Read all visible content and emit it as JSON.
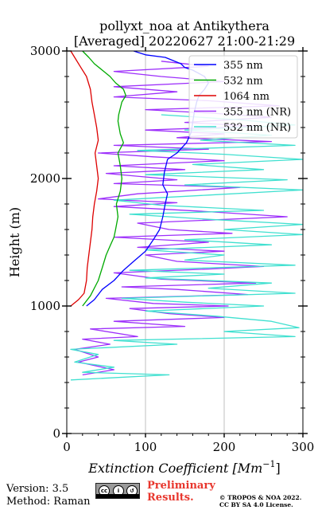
{
  "chart_data": {
    "type": "line",
    "title": "pollyxt_noa at Antikythera",
    "subtitle": "[Averaged] 20220627 21:00-21:29",
    "xlabel": "Extinction Coefficient [Mm",
    "xlabel_sup": "−1",
    "xlabel_end": "]",
    "ylabel": "Height (m)",
    "xlim": [
      0,
      300
    ],
    "ylim": [
      0,
      3000
    ],
    "x_ticks": [
      0,
      100,
      200,
      300
    ],
    "y_ticks": [
      0,
      1000,
      2000,
      3000
    ],
    "grid": true,
    "legend_position": "top-right",
    "series": [
      {
        "name": "355 nm",
        "color": "#0000ff",
        "points": [
          [
            25,
            1000
          ],
          [
            35,
            1050
          ],
          [
            45,
            1130
          ],
          [
            60,
            1200
          ],
          [
            72,
            1280
          ],
          [
            85,
            1350
          ],
          [
            100,
            1430
          ],
          [
            110,
            1520
          ],
          [
            118,
            1600
          ],
          [
            122,
            1700
          ],
          [
            125,
            1800
          ],
          [
            128,
            1880
          ],
          [
            122,
            1950
          ],
          [
            124,
            2050
          ],
          [
            128,
            2150
          ],
          [
            140,
            2200
          ],
          [
            152,
            2280
          ],
          [
            158,
            2360
          ],
          [
            160,
            2440
          ],
          [
            162,
            2520
          ],
          [
            165,
            2600
          ],
          [
            168,
            2650
          ],
          [
            175,
            2700
          ],
          [
            180,
            2750
          ],
          [
            175,
            2800
          ],
          [
            160,
            2850
          ],
          [
            150,
            2870
          ],
          [
            145,
            2900
          ],
          [
            125,
            2950
          ],
          [
            100,
            2970
          ],
          [
            85,
            3000
          ]
        ]
      },
      {
        "name": "532 nm",
        "color": "#00aa00",
        "points": [
          [
            20,
            1000
          ],
          [
            30,
            1080
          ],
          [
            40,
            1200
          ],
          [
            45,
            1300
          ],
          [
            50,
            1400
          ],
          [
            55,
            1470
          ],
          [
            60,
            1540
          ],
          [
            62,
            1600
          ],
          [
            65,
            1700
          ],
          [
            63,
            1800
          ],
          [
            68,
            1900
          ],
          [
            70,
            2000
          ],
          [
            68,
            2100
          ],
          [
            65,
            2200
          ],
          [
            72,
            2280
          ],
          [
            68,
            2350
          ],
          [
            65,
            2450
          ],
          [
            66,
            2500
          ],
          [
            70,
            2600
          ],
          [
            75,
            2650
          ],
          [
            72,
            2700
          ],
          [
            62,
            2750
          ],
          [
            55,
            2800
          ],
          [
            45,
            2850
          ],
          [
            35,
            2900
          ],
          [
            28,
            2950
          ],
          [
            20,
            3000
          ]
        ]
      },
      {
        "name": "1064 nm",
        "color": "#dd0000",
        "points": [
          [
            5,
            1000
          ],
          [
            15,
            1050
          ],
          [
            22,
            1100
          ],
          [
            25,
            1200
          ],
          [
            26,
            1300
          ],
          [
            28,
            1400
          ],
          [
            30,
            1500
          ],
          [
            32,
            1600
          ],
          [
            33,
            1700
          ],
          [
            35,
            1800
          ],
          [
            38,
            1900
          ],
          [
            40,
            2000
          ],
          [
            38,
            2100
          ],
          [
            36,
            2200
          ],
          [
            40,
            2300
          ],
          [
            38,
            2400
          ],
          [
            35,
            2500
          ],
          [
            32,
            2600
          ],
          [
            30,
            2700
          ],
          [
            25,
            2800
          ],
          [
            18,
            2870
          ],
          [
            10,
            2950
          ],
          [
            5,
            3000
          ]
        ]
      },
      {
        "name": "355 nm (NR)",
        "color": "#9d2ffb",
        "points": [
          [
            20,
            460
          ],
          [
            60,
            500
          ],
          [
            15,
            560
          ],
          [
            40,
            600
          ],
          [
            10,
            660
          ],
          [
            55,
            700
          ],
          [
            20,
            740
          ],
          [
            90,
            760
          ],
          [
            30,
            820
          ],
          [
            150,
            840
          ],
          [
            60,
            880
          ],
          [
            200,
            910
          ],
          [
            130,
            940
          ],
          [
            80,
            980
          ],
          [
            205,
            1000
          ],
          [
            110,
            1020
          ],
          [
            50,
            1060
          ],
          [
            230,
            1090
          ],
          [
            140,
            1130
          ],
          [
            70,
            1150
          ],
          [
            240,
            1180
          ],
          [
            120,
            1210
          ],
          [
            60,
            1260
          ],
          [
            180,
            1290
          ],
          [
            250,
            1310
          ],
          [
            140,
            1350
          ],
          [
            100,
            1400
          ],
          [
            200,
            1430
          ],
          [
            90,
            1460
          ],
          [
            180,
            1500
          ],
          [
            60,
            1540
          ],
          [
            210,
            1570
          ],
          [
            130,
            1600
          ],
          [
            90,
            1650
          ],
          [
            280,
            1700
          ],
          [
            180,
            1740
          ],
          [
            60,
            1780
          ],
          [
            140,
            1810
          ],
          [
            40,
            1840
          ],
          [
            90,
            1880
          ],
          [
            220,
            1930
          ],
          [
            60,
            1960
          ],
          [
            140,
            1990
          ],
          [
            50,
            2040
          ],
          [
            150,
            2070
          ],
          [
            60,
            2100
          ],
          [
            200,
            2140
          ],
          [
            110,
            2170
          ],
          [
            40,
            2200
          ],
          [
            180,
            2230
          ],
          [
            60,
            2260
          ],
          [
            260,
            2290
          ],
          [
            140,
            2320
          ],
          [
            200,
            2350
          ],
          [
            100,
            2380
          ],
          [
            240,
            2410
          ],
          [
            150,
            2440
          ],
          [
            260,
            2480
          ],
          [
            190,
            2510
          ],
          [
            100,
            2540
          ],
          [
            270,
            2570
          ],
          [
            180,
            2610
          ],
          [
            60,
            2640
          ],
          [
            140,
            2680
          ],
          [
            60,
            2720
          ],
          [
            200,
            2760
          ],
          [
            120,
            2800
          ],
          [
            60,
            2840
          ],
          [
            180,
            2880
          ],
          [
            120,
            2920
          ]
        ]
      },
      {
        "name": "532 nm (NR)",
        "color": "#40e0d0",
        "points": [
          [
            5,
            420
          ],
          [
            130,
            460
          ],
          [
            20,
            480
          ],
          [
            60,
            520
          ],
          [
            10,
            560
          ],
          [
            40,
            620
          ],
          [
            5,
            660
          ],
          [
            140,
            700
          ],
          [
            60,
            730
          ],
          [
            290,
            760
          ],
          [
            200,
            800
          ],
          [
            295,
            830
          ],
          [
            260,
            880
          ],
          [
            190,
            920
          ],
          [
            100,
            960
          ],
          [
            250,
            1000
          ],
          [
            150,
            1030
          ],
          [
            70,
            1060
          ],
          [
            290,
            1100
          ],
          [
            180,
            1140
          ],
          [
            260,
            1180
          ],
          [
            100,
            1220
          ],
          [
            200,
            1250
          ],
          [
            80,
            1280
          ],
          [
            290,
            1320
          ],
          [
            150,
            1360
          ],
          [
            200,
            1400
          ],
          [
            100,
            1440
          ],
          [
            260,
            1480
          ],
          [
            150,
            1520
          ],
          [
            300,
            1560
          ],
          [
            200,
            1600
          ],
          [
            300,
            1640
          ],
          [
            180,
            1680
          ],
          [
            80,
            1720
          ],
          [
            250,
            1750
          ],
          [
            120,
            1790
          ],
          [
            60,
            1830
          ],
          [
            180,
            1870
          ],
          [
            300,
            1910
          ],
          [
            150,
            1950
          ],
          [
            280,
            1990
          ],
          [
            100,
            2030
          ],
          [
            250,
            2070
          ],
          [
            160,
            2110
          ],
          [
            300,
            2150
          ],
          [
            200,
            2190
          ],
          [
            90,
            2220
          ],
          [
            290,
            2260
          ],
          [
            170,
            2300
          ],
          [
            260,
            2340
          ],
          [
            150,
            2380
          ],
          [
            290,
            2420
          ],
          [
            220,
            2460
          ],
          [
            120,
            2500
          ]
        ]
      }
    ]
  },
  "footer": {
    "version": "Version: 3.5",
    "method": "Method: Raman",
    "preliminary_line1": "Preliminary",
    "preliminary_line2": "Results.",
    "copyright_line1": "© TROPOS & NOA 2022.",
    "copyright_line2": "CC BY SA 4.0 License.",
    "cc_icon": "cc-by-sa-badge"
  }
}
